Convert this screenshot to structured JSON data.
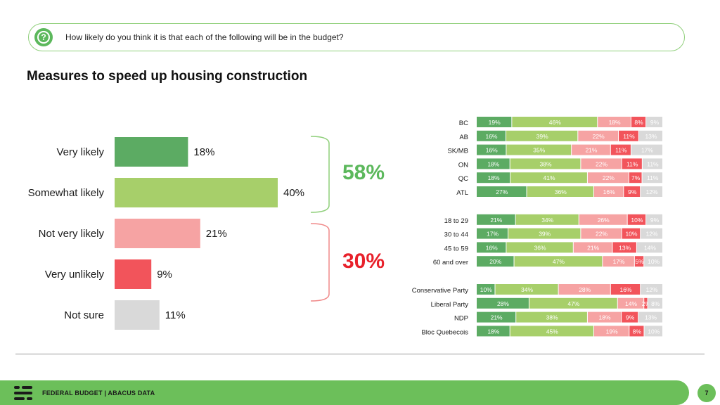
{
  "question": "How likely do you think it is that each of the following will be in the budget?",
  "title": "Measures to speed up housing construction",
  "summary": {
    "likely_total": "58%",
    "unlikely_total": "30%"
  },
  "footer": {
    "text": "FEDERAL BUDGET | ABACUS DATA",
    "page": "7"
  },
  "colors": {
    "very_likely": "#5cab63",
    "somewhat_likely": "#a7cf6a",
    "not_very_likely": "#f6a3a3",
    "very_unlikely": "#f2545b",
    "not_sure": "#d9d9d9",
    "green_accent": "#5cb85c",
    "red_accent": "#e8212b"
  },
  "chart_data": [
    {
      "type": "bar",
      "orientation": "horizontal",
      "categories": [
        "Very likely",
        "Somewhat likely",
        "Not very likely",
        "Very unlikely",
        "Not sure"
      ],
      "values": [
        18,
        40,
        21,
        9,
        11
      ],
      "labels": [
        "18%",
        "40%",
        "21%",
        "9%",
        "11%"
      ]
    },
    {
      "type": "bar",
      "stacked": true,
      "orientation": "horizontal",
      "segments": [
        "Very likely",
        "Somewhat likely",
        "Not very likely",
        "Very unlikely",
        "Not sure"
      ],
      "groups": [
        {
          "rows": [
            {
              "label": "BC",
              "values": [
                19,
                46,
                18,
                8,
                9
              ]
            },
            {
              "label": "AB",
              "values": [
                16,
                39,
                22,
                11,
                13
              ]
            },
            {
              "label": "SK/MB",
              "values": [
                16,
                35,
                21,
                11,
                17
              ]
            },
            {
              "label": "ON",
              "values": [
                18,
                38,
                22,
                11,
                11
              ]
            },
            {
              "label": "QC",
              "values": [
                18,
                41,
                22,
                7,
                11
              ]
            },
            {
              "label": "ATL",
              "values": [
                27,
                36,
                16,
                9,
                12
              ]
            }
          ]
        },
        {
          "rows": [
            {
              "label": "18 to 29",
              "values": [
                21,
                34,
                26,
                10,
                9
              ]
            },
            {
              "label": "30 to 44",
              "values": [
                17,
                39,
                22,
                10,
                12
              ]
            },
            {
              "label": "45 to 59",
              "values": [
                16,
                36,
                21,
                13,
                14
              ]
            },
            {
              "label": "60 and over",
              "values": [
                20,
                47,
                17,
                5,
                10
              ]
            }
          ]
        },
        {
          "rows": [
            {
              "label": "Conservative Party",
              "values": [
                10,
                34,
                28,
                16,
                12
              ]
            },
            {
              "label": "Liberal Party",
              "values": [
                28,
                47,
                14,
                2,
                8
              ]
            },
            {
              "label": "NDP",
              "values": [
                21,
                38,
                18,
                9,
                13
              ]
            },
            {
              "label": "Bloc Quebecois",
              "values": [
                18,
                45,
                19,
                8,
                10
              ]
            }
          ]
        }
      ]
    }
  ]
}
